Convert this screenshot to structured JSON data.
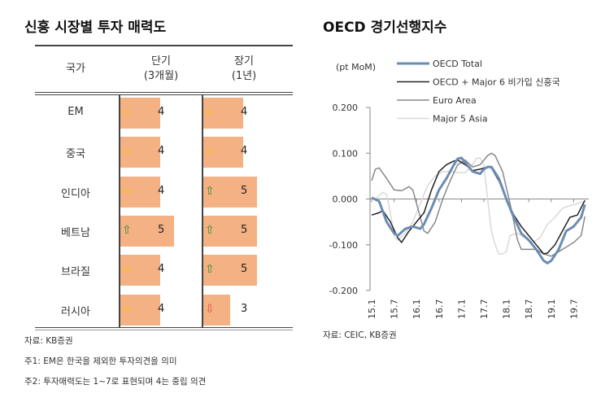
{
  "left": {
    "title": "신흥 시장별 투자 매력도",
    "headers": {
      "country": "국가",
      "short": [
        "단기",
        "(3개월)"
      ],
      "long": [
        "장기",
        "(1년)"
      ]
    },
    "rows": [
      {
        "country": "EM",
        "short": {
          "value": "4",
          "trend": "flat"
        },
        "long": {
          "value": "4",
          "trend": "flat"
        }
      },
      {
        "country": "중국",
        "short": {
          "value": "4",
          "trend": "flat"
        },
        "long": {
          "value": "4",
          "trend": "flat"
        }
      },
      {
        "country": "인디아",
        "short": {
          "value": "4",
          "trend": "flat"
        },
        "long": {
          "value": "5",
          "trend": "up"
        }
      },
      {
        "country": "베트남",
        "short": {
          "value": "5",
          "trend": "up"
        },
        "long": {
          "value": "5",
          "trend": "up"
        }
      },
      {
        "country": "브라질",
        "short": {
          "value": "4",
          "trend": "flat"
        },
        "long": {
          "value": "5",
          "trend": "up"
        }
      },
      {
        "country": "러시아",
        "short": {
          "value": "4",
          "trend": "flat"
        },
        "long": {
          "value": "3",
          "trend": "down"
        }
      }
    ],
    "notes": [
      "자료: KB증권",
      "주1: EM은 한국을 제외한 투자의견을 의미",
      "주2: 투자매력도는 1~7로 표현되며 4는 중립 의견"
    ],
    "colors": {
      "bar": "#f4b183",
      "flat": "#f5c518",
      "up": "#2e8b3a",
      "down": "#e05050"
    }
  },
  "chart_data": {
    "type": "line",
    "title": "OECD 경기선행지수",
    "ylabel": "(pt MoM)",
    "ylim": [
      -0.2,
      0.2
    ],
    "yticks": [
      "0.200",
      "0.100",
      "0.000",
      "-0.100",
      "-0.200"
    ],
    "xticks": [
      "15.1",
      "15.7",
      "16.1",
      "16.7",
      "17.1",
      "17.7",
      "18.1",
      "18.7",
      "19.1",
      "19.7"
    ],
    "xrange": [
      "15.1",
      "19.10"
    ],
    "legend_position": "top",
    "source": "자료: CEIC, KB증권",
    "series": [
      {
        "name": "OECD Total",
        "color": "#6b8cb3",
        "points": [
          [
            "15.1",
            0.003
          ],
          [
            "15.3",
            -0.005
          ],
          [
            "15.5",
            -0.05
          ],
          [
            "15.7",
            -0.075
          ],
          [
            "15.8",
            -0.08
          ],
          [
            "15.10",
            -0.065
          ],
          [
            "15.12",
            -0.06
          ],
          [
            "16.2",
            -0.065
          ],
          [
            "16.3",
            -0.055
          ],
          [
            "16.5",
            -0.02
          ],
          [
            "16.7",
            0.02
          ],
          [
            "16.9",
            0.045
          ],
          [
            "16.11",
            0.075
          ],
          [
            "16.12",
            0.088
          ],
          [
            "17.1",
            0.09
          ],
          [
            "17.2",
            0.08
          ],
          [
            "17.4",
            0.06
          ],
          [
            "17.6",
            0.055
          ],
          [
            "17.7",
            0.065
          ],
          [
            "17.8",
            0.07
          ],
          [
            "17.9",
            0.07
          ],
          [
            "17.11",
            0.045
          ],
          [
            "18.1",
            0.0
          ],
          [
            "18.3",
            -0.04
          ],
          [
            "18.5",
            -0.075
          ],
          [
            "18.7",
            -0.09
          ],
          [
            "18.9",
            -0.11
          ],
          [
            "18.11",
            -0.135
          ],
          [
            "18.12",
            -0.14
          ],
          [
            "19.1",
            -0.135
          ],
          [
            "19.3",
            -0.11
          ],
          [
            "19.5",
            -0.07
          ],
          [
            "19.7",
            -0.06
          ],
          [
            "19.9",
            -0.04
          ],
          [
            "19.10",
            -0.012
          ]
        ]
      },
      {
        "name": "OECD + Major 6 비가입 신흥국",
        "color": "#222222",
        "points": [
          [
            "15.1",
            -0.035
          ],
          [
            "15.3",
            -0.03
          ],
          [
            "15.4",
            -0.025
          ],
          [
            "15.6",
            -0.05
          ],
          [
            "15.8",
            -0.085
          ],
          [
            "15.9",
            -0.095
          ],
          [
            "15.11",
            -0.07
          ],
          [
            "16.1",
            -0.05
          ],
          [
            "16.3",
            -0.03
          ],
          [
            "16.5",
            0.02
          ],
          [
            "16.7",
            0.06
          ],
          [
            "16.9",
            0.075
          ],
          [
            "16.11",
            0.083
          ],
          [
            "16.12",
            0.085
          ],
          [
            "17.2",
            0.075
          ],
          [
            "17.4",
            0.062
          ],
          [
            "17.6",
            0.065
          ],
          [
            "17.8",
            0.07
          ],
          [
            "17.9",
            0.068
          ],
          [
            "17.11",
            0.04
          ],
          [
            "18.1",
            0.0
          ],
          [
            "18.3",
            -0.035
          ],
          [
            "18.5",
            -0.06
          ],
          [
            "18.7",
            -0.08
          ],
          [
            "18.9",
            -0.1
          ],
          [
            "18.11",
            -0.12
          ],
          [
            "18.12",
            -0.118
          ],
          [
            "19.2",
            -0.1
          ],
          [
            "19.4",
            -0.07
          ],
          [
            "19.6",
            -0.04
          ],
          [
            "19.8",
            -0.035
          ],
          [
            "19.10",
            -0.003
          ]
        ]
      },
      {
        "name": "Euro Area",
        "color": "#888888",
        "points": [
          [
            "15.1",
            0.04
          ],
          [
            "15.2",
            0.065
          ],
          [
            "15.3",
            0.068
          ],
          [
            "15.5",
            0.045
          ],
          [
            "15.7",
            0.02
          ],
          [
            "15.9",
            0.018
          ],
          [
            "15.11",
            0.027
          ],
          [
            "15.12",
            0.02
          ],
          [
            "16.2",
            -0.04
          ],
          [
            "16.3",
            -0.07
          ],
          [
            "16.4",
            -0.075
          ],
          [
            "16.6",
            -0.05
          ],
          [
            "16.8",
            0.0
          ],
          [
            "16.10",
            0.04
          ],
          [
            "16.12",
            0.075
          ],
          [
            "17.2",
            0.085
          ],
          [
            "17.4",
            0.07
          ],
          [
            "17.6",
            0.075
          ],
          [
            "17.8",
            0.095
          ],
          [
            "17.9",
            0.1
          ],
          [
            "17.10",
            0.095
          ],
          [
            "17.12",
            0.06
          ],
          [
            "18.2",
            -0.01
          ],
          [
            "18.4",
            -0.09
          ],
          [
            "18.5",
            -0.11
          ],
          [
            "18.7",
            -0.11
          ],
          [
            "18.9",
            -0.11
          ],
          [
            "18.11",
            -0.12
          ],
          [
            "19.1",
            -0.125
          ],
          [
            "19.3",
            -0.115
          ],
          [
            "19.5",
            -0.105
          ],
          [
            "19.7",
            -0.095
          ],
          [
            "19.9",
            -0.08
          ],
          [
            "19.10",
            -0.038
          ]
        ]
      },
      {
        "name": "Major 5 Asia",
        "color": "#d9d9d9",
        "points": [
          [
            "15.1",
            0.0
          ],
          [
            "15.2",
            0.0
          ],
          [
            "15.4",
            0.015
          ],
          [
            "15.5",
            0.01
          ],
          [
            "15.6",
            -0.03
          ],
          [
            "15.7",
            -0.08
          ],
          [
            "15.8",
            -0.09
          ],
          [
            "15.10",
            -0.075
          ],
          [
            "15.12",
            -0.05
          ],
          [
            "16.2",
            -0.01
          ],
          [
            "16.4",
            0.03
          ],
          [
            "16.6",
            0.05
          ],
          [
            "16.8",
            0.06
          ],
          [
            "16.10",
            0.06
          ],
          [
            "16.12",
            0.058
          ],
          [
            "17.2",
            0.057
          ],
          [
            "17.4",
            0.075
          ],
          [
            "17.5",
            0.088
          ],
          [
            "17.6",
            0.09
          ],
          [
            "17.7",
            0.075
          ],
          [
            "17.8",
            0.0
          ],
          [
            "17.9",
            -0.07
          ],
          [
            "17.10",
            -0.1
          ],
          [
            "17.11",
            -0.12
          ],
          [
            "17.12",
            -0.12
          ],
          [
            "18.1",
            -0.115
          ],
          [
            "18.2",
            -0.08
          ],
          [
            "18.4",
            -0.075
          ],
          [
            "18.6",
            -0.085
          ],
          [
            "18.8",
            -0.095
          ],
          [
            "18.10",
            -0.085
          ],
          [
            "18.12",
            -0.055
          ],
          [
            "19.2",
            -0.04
          ],
          [
            "19.4",
            -0.02
          ],
          [
            "19.6",
            -0.015
          ],
          [
            "19.8",
            -0.01
          ],
          [
            "19.10",
            -0.005
          ]
        ]
      }
    ]
  }
}
